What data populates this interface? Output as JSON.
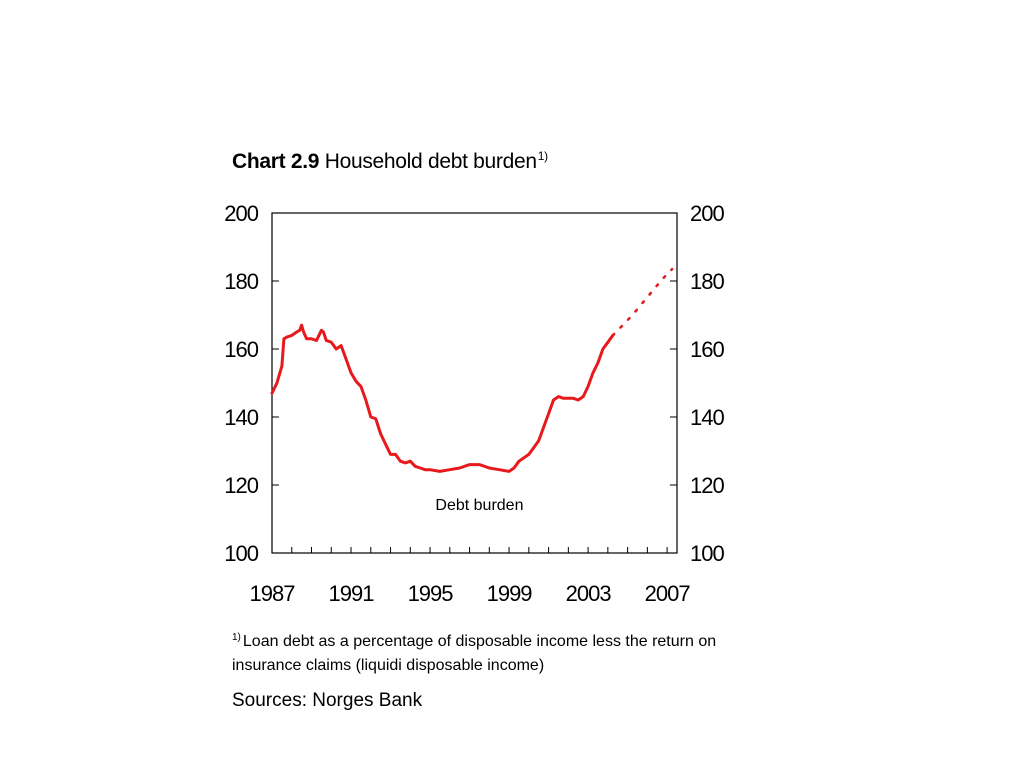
{
  "title": {
    "number": "Chart 2.9",
    "text": "Household debt burden",
    "note_marker": "1)"
  },
  "chart_data": {
    "type": "line",
    "title": "Household debt burden",
    "xlabel": "",
    "ylabel": "",
    "xlim": [
      1987,
      2007.5
    ],
    "ylim": [
      100,
      200
    ],
    "x_ticks": [
      "1987",
      "1991",
      "1995",
      "1999",
      "2003",
      "2007"
    ],
    "y_ticks_left": [
      "100",
      "120",
      "140",
      "160",
      "180",
      "200"
    ],
    "y_ticks_right": [
      "100",
      "120",
      "140",
      "160",
      "180",
      "200"
    ],
    "annotation": "Debt burden",
    "grid": false,
    "color": "#e8191c",
    "series": [
      {
        "style": "solid",
        "x": [
          1987.0,
          1987.25,
          1987.5,
          1987.6,
          1987.75,
          1988.0,
          1988.25,
          1988.4,
          1988.5,
          1988.6,
          1988.75,
          1989.0,
          1989.25,
          1989.5,
          1989.6,
          1989.75,
          1990.0,
          1990.25,
          1990.5,
          1990.75,
          1991.0,
          1991.25,
          1991.5,
          1991.75,
          1992.0,
          1992.25,
          1992.5,
          1992.75,
          1993.0,
          1993.25,
          1993.5,
          1993.75,
          1994.0,
          1994.25,
          1994.5,
          1994.75,
          1995.0,
          1995.5,
          1996.0,
          1996.5,
          1997.0,
          1997.5,
          1998.0,
          1998.5,
          1999.0,
          1999.25,
          1999.5,
          1999.75,
          2000.0,
          2000.25,
          2000.5,
          2000.75,
          2001.0,
          2001.25,
          2001.5,
          2001.75,
          2002.0,
          2002.25,
          2002.5,
          2002.75,
          2003.0,
          2003.25,
          2003.5,
          2003.75,
          2004.0,
          2004.25
        ],
        "y": [
          147,
          150,
          155,
          163,
          163.5,
          164,
          165,
          165.5,
          167,
          165,
          163,
          163,
          162.5,
          165.5,
          165,
          162.5,
          162,
          160,
          161,
          157,
          153,
          150.5,
          149,
          145,
          140,
          139.5,
          135,
          132,
          129,
          129,
          127,
          126.5,
          127,
          125.5,
          125,
          124.5,
          124.5,
          124,
          124.5,
          125,
          126,
          126,
          125,
          124.5,
          124,
          125,
          127,
          128,
          129,
          131,
          133,
          137,
          141,
          145,
          146,
          145.5,
          145.5,
          145.5,
          145,
          146,
          149,
          153,
          156,
          160,
          162,
          164
        ]
      },
      {
        "style": "dotted",
        "x": [
          2004.25,
          2004.75,
          2005.25,
          2005.75,
          2006.25,
          2006.75,
          2007.25
        ],
        "y": [
          164,
          167,
          170,
          173.5,
          177,
          180.5,
          183.5
        ]
      }
    ]
  },
  "footnote": {
    "marker": "1)",
    "text": "Loan debt as a percentage of disposable income less the return on insurance claims (liquidi disposable income)"
  },
  "sources": "Sources: Norges Bank"
}
